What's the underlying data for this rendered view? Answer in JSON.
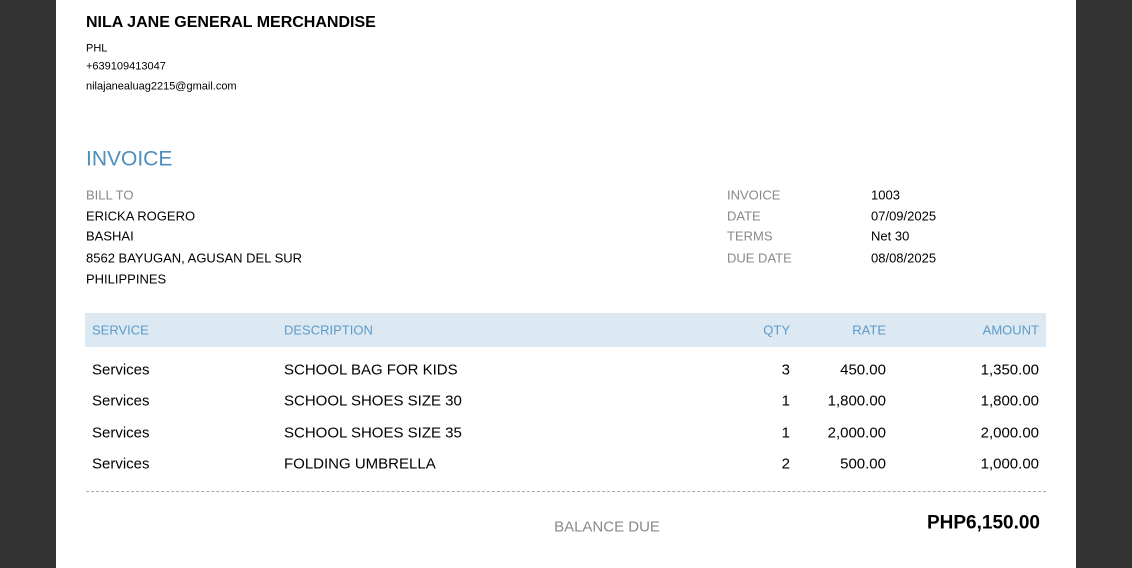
{
  "company": {
    "name": "NILA JANE GENERAL MERCHANDISE",
    "country": "PHL",
    "phone": "+639109413047",
    "email": "nilajanealuag2215@gmail.com"
  },
  "title": "INVOICE",
  "bill_to": {
    "label": "BILL TO",
    "lines": [
      "ERICKA ROGERO",
      "BASHAI",
      "8562 BAYUGAN, AGUSAN DEL SUR",
      "PHILIPPINES"
    ]
  },
  "meta": [
    {
      "label": "INVOICE",
      "value": "1003"
    },
    {
      "label": "DATE",
      "value": "07/09/2025"
    },
    {
      "label": "TERMS",
      "value": "Net 30"
    },
    {
      "label": "DUE DATE",
      "value": "08/08/2025"
    }
  ],
  "table": {
    "headers": [
      "SERVICE",
      "DESCRIPTION",
      "QTY",
      "RATE",
      "AMOUNT"
    ],
    "rows": [
      [
        "Services",
        "SCHOOL BAG FOR KIDS",
        "3",
        "450.00",
        "1,350.00"
      ],
      [
        "Services",
        "SCHOOL SHOES SIZE 30",
        "1",
        "1,800.00",
        "1,800.00"
      ],
      [
        "Services",
        "SCHOOL SHOES SIZE 35",
        "1",
        "2,000.00",
        "2,000.00"
      ],
      [
        "Services",
        "FOLDING UMBRELLA",
        "2",
        "500.00",
        "1,000.00"
      ]
    ]
  },
  "balance": {
    "label": "BALANCE DUE",
    "value": "PHP6,150.00"
  }
}
